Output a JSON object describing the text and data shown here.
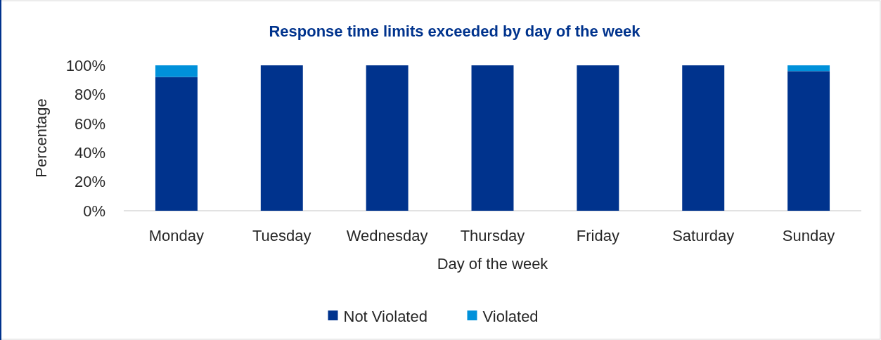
{
  "chart_data": {
    "type": "bar",
    "title": "Response time limits exceeded by day of the week",
    "xlabel": "Day of the week",
    "ylabel": "Percentage",
    "categories": [
      "Monday",
      "Tuesday",
      "Wednesday",
      "Thursday",
      "Friday",
      "Saturday",
      "Sunday"
    ],
    "series": [
      {
        "name": "Not Violated",
        "color": "#00338d",
        "values": [
          92,
          100,
          100,
          100,
          100,
          100,
          96
        ]
      },
      {
        "name": "Violated",
        "color": "#0091da",
        "values": [
          8,
          0,
          0,
          0,
          0,
          0,
          4
        ]
      }
    ],
    "stacked": true,
    "ylim": [
      0,
      100
    ],
    "yticks": [
      {
        "value": 0,
        "label": "0%"
      },
      {
        "value": 20,
        "label": "20%"
      },
      {
        "value": 40,
        "label": "40%"
      },
      {
        "value": 60,
        "label": "60%"
      },
      {
        "value": 80,
        "label": "80%"
      },
      {
        "value": 100,
        "label": "100%"
      }
    ],
    "grid": false,
    "legend": "bottom"
  }
}
